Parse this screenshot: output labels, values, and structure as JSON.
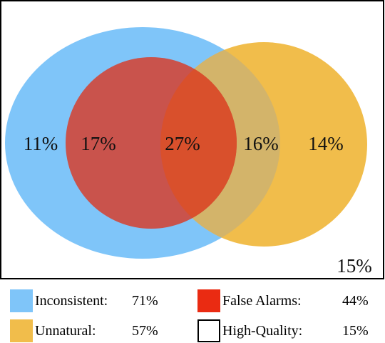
{
  "colors": {
    "inconsistent": "#7fc5f9",
    "unnatural": "#f1bd4b",
    "false_alarms": "#c9534c",
    "false_alarms_legend": "#ea2b12",
    "overlap_all": "#d9502c",
    "overlap_inc_unnat": "#d3b46a",
    "high_quality": "#ffffff",
    "frame": "#000000"
  },
  "regions": {
    "inconsistent_only": "11%",
    "inconsistent_false_alarms": "17%",
    "all_three": "27%",
    "inconsistent_unnatural": "16%",
    "unnatural_only": "14%",
    "outside": "15%"
  },
  "legend": [
    {
      "label": "Inconsistent:",
      "value": "71%",
      "color": "#7fc5f9",
      "bordered": false
    },
    {
      "label": "False Alarms:",
      "value": "44%",
      "color": "#ea2b12",
      "bordered": false
    },
    {
      "label": "Unnatural:",
      "value": "57%",
      "color": "#f1bd4b",
      "bordered": false
    },
    {
      "label": "High-Quality:",
      "value": "15%",
      "color": "#ffffff",
      "bordered": true
    }
  ]
}
